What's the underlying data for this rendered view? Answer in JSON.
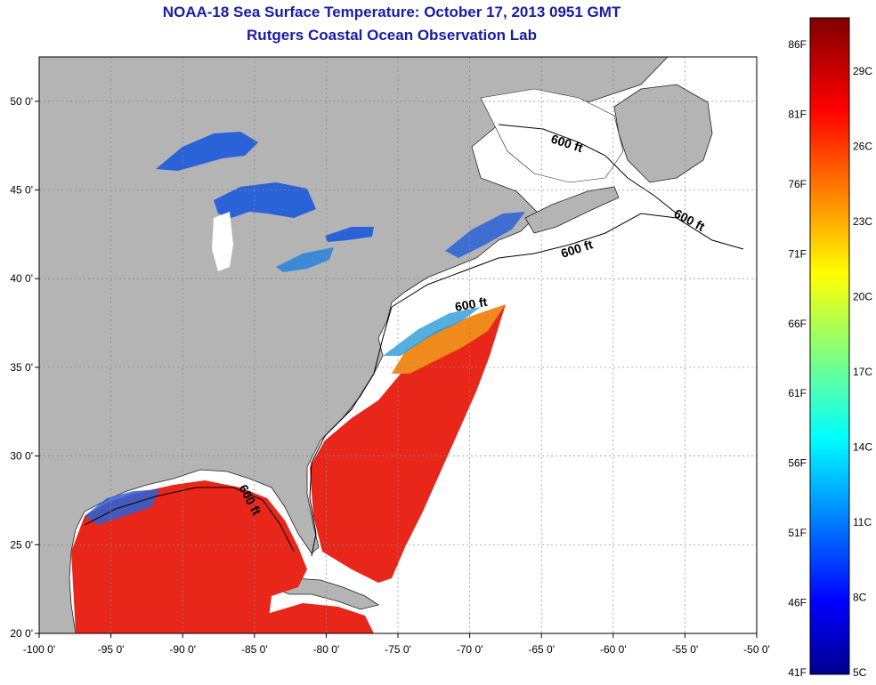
{
  "title": {
    "line1": "NOAA-18 Sea Surface Temperature:  October 17, 2013 0951 GMT",
    "line2": "Rutgers Coastal Ocean Observation Lab"
  },
  "colors": {
    "title": "#1a1aa6",
    "land": "#b4b4b4",
    "no_data": "#ffffff",
    "sst_warm": "#e8261a",
    "sst_orange": "#f08a1c",
    "sst_cool": "#2a62d8"
  },
  "map": {
    "lon_range": [
      -100,
      -50
    ],
    "lat_range": [
      20,
      52.5
    ],
    "lon_ticks": [
      {
        "value": -100,
        "label": "-100 0'"
      },
      {
        "value": -95,
        "label": "-95 0'"
      },
      {
        "value": -90,
        "label": "-90 0'"
      },
      {
        "value": -85,
        "label": "-85 0'"
      },
      {
        "value": -80,
        "label": "-80 0'"
      },
      {
        "value": -75,
        "label": "-75 0'"
      },
      {
        "value": -70,
        "label": "-70 0'"
      },
      {
        "value": -65,
        "label": "-65 0'"
      },
      {
        "value": -60,
        "label": "-60 0'"
      },
      {
        "value": -55,
        "label": "-55 0'"
      },
      {
        "value": -50,
        "label": "-50 0'"
      }
    ],
    "lat_ticks": [
      {
        "value": 20,
        "label": "20 0'"
      },
      {
        "value": 25,
        "label": "25 0'"
      },
      {
        "value": 30,
        "label": "30 0'"
      },
      {
        "value": 35,
        "label": "35 0'"
      },
      {
        "value": 40,
        "label": "40 0'"
      },
      {
        "value": 45,
        "label": "45 0'"
      },
      {
        "value": 50,
        "label": "50 0'"
      }
    ],
    "contour_labels": [
      "600 ft",
      "600 ft",
      "600 ft",
      "600 ft",
      "600 ft"
    ]
  },
  "colorbar": {
    "fahrenheit_labels": [
      "86F",
      "81F",
      "76F",
      "71F",
      "66F",
      "61F",
      "56F",
      "51F",
      "46F",
      "41F"
    ],
    "celsius_labels": [
      "29C",
      "26C",
      "23C",
      "20C",
      "17C",
      "14C",
      "11C",
      "8C",
      "5C"
    ]
  }
}
